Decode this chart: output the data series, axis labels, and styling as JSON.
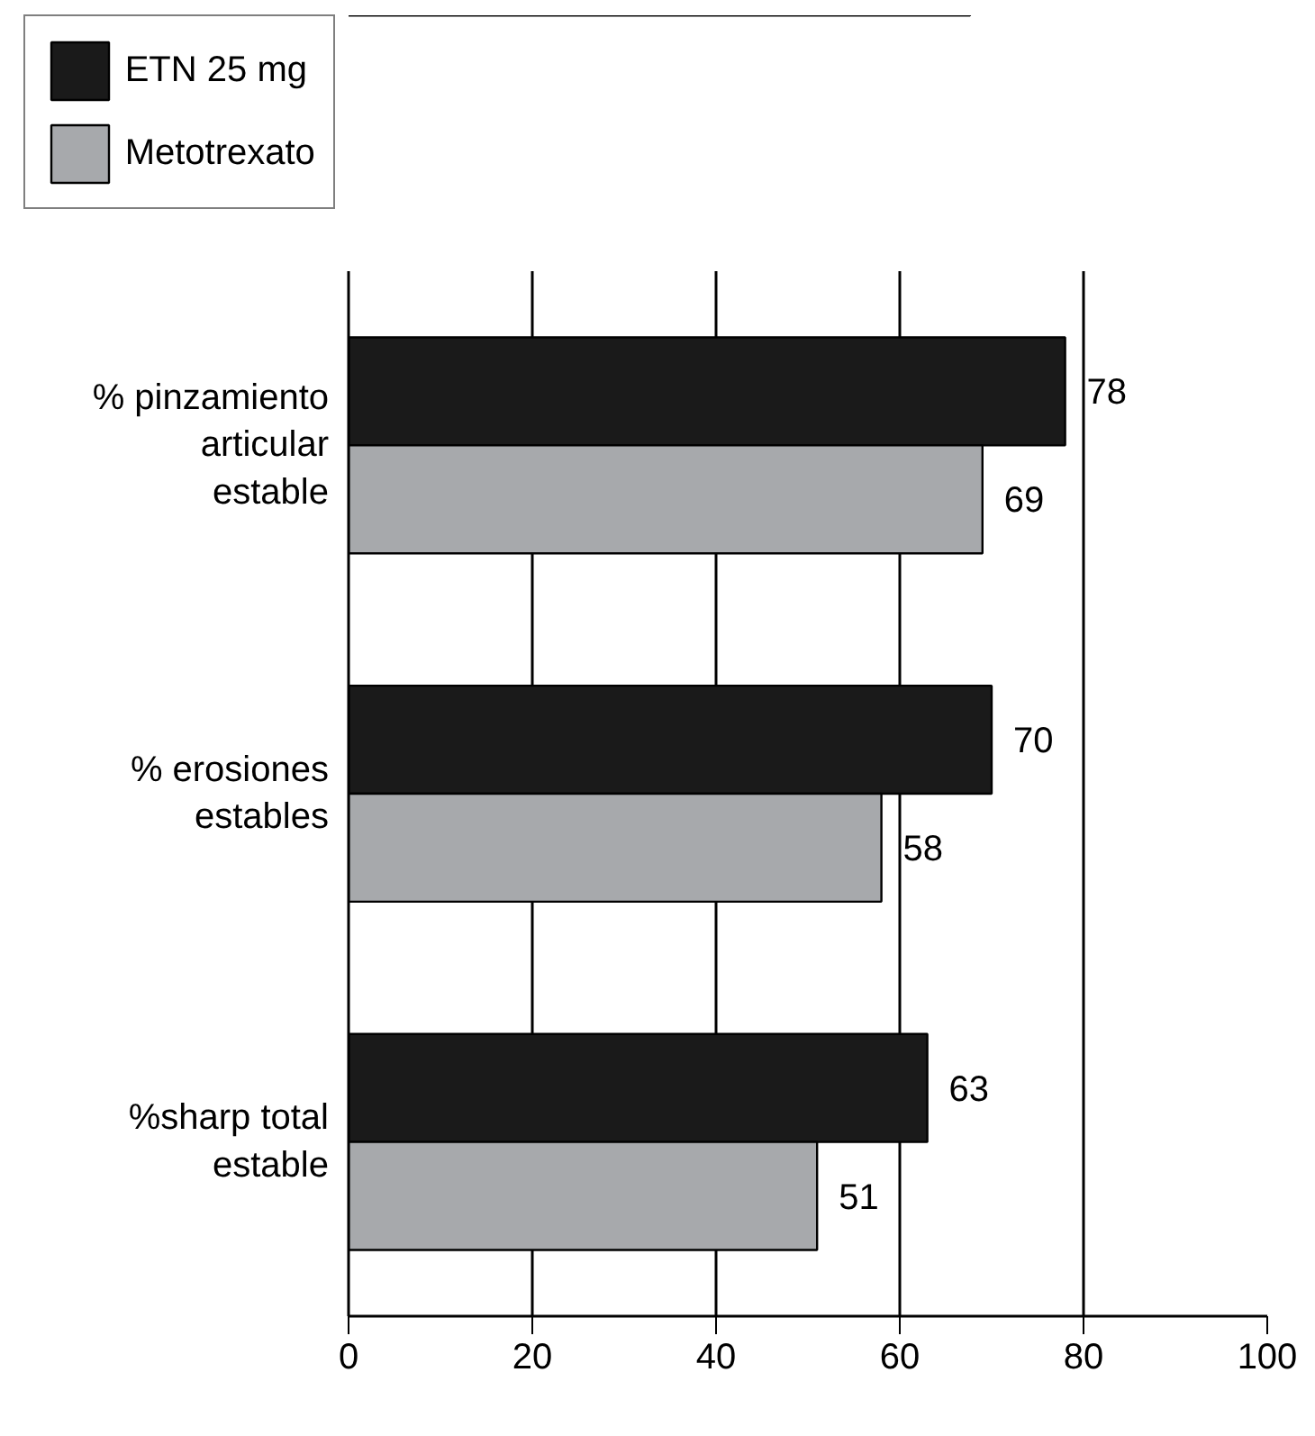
{
  "chart_data": {
    "type": "bar",
    "orientation": "horizontal",
    "categories": [
      "% pinzamiento\narticular\nestable",
      "% erosiones\nestables",
      "%sharp total\nestable"
    ],
    "series": [
      {
        "name": "ETN 25 mg",
        "color": "#1a1a1a",
        "values": [
          78,
          70,
          63
        ]
      },
      {
        "name": "Metotrexato",
        "color": "#a7a9ac",
        "values": [
          69,
          58,
          51
        ]
      }
    ],
    "xlim": [
      0,
      100
    ],
    "xticks": [
      0,
      20,
      40,
      60,
      80,
      100
    ],
    "grid": "x",
    "legend": "top left",
    "data_labels": true
  }
}
